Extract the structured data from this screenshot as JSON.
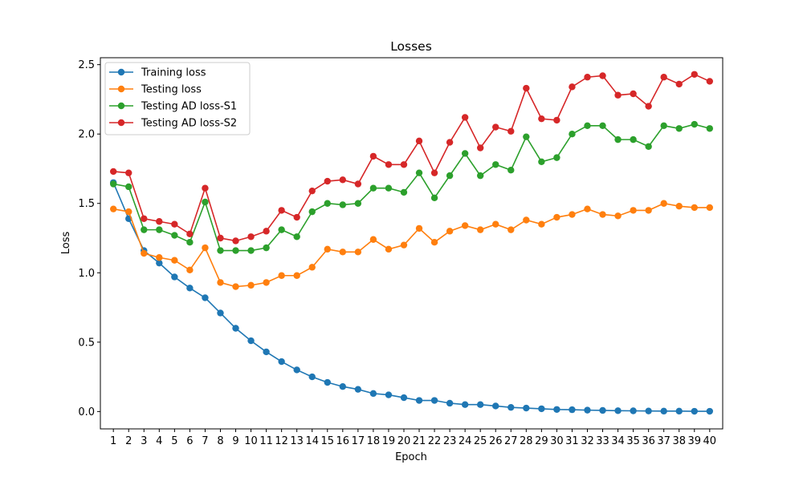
{
  "chart_data": {
    "type": "line",
    "title": "Losses",
    "xlabel": "Epoch",
    "ylabel": "Loss",
    "xlim": [
      0.15,
      40.85
    ],
    "ylim": [
      -0.125,
      2.55
    ],
    "x": [
      1,
      2,
      3,
      4,
      5,
      6,
      7,
      8,
      9,
      10,
      11,
      12,
      13,
      14,
      15,
      16,
      17,
      18,
      19,
      20,
      21,
      22,
      23,
      24,
      25,
      26,
      27,
      28,
      29,
      30,
      31,
      32,
      33,
      34,
      35,
      36,
      37,
      38,
      39,
      40
    ],
    "x_ticks": [
      "1",
      "2",
      "3",
      "4",
      "5",
      "6",
      "7",
      "8",
      "9",
      "10",
      "11",
      "12",
      "13",
      "14",
      "15",
      "16",
      "17",
      "18",
      "19",
      "20",
      "21",
      "22",
      "23",
      "24",
      "25",
      "26",
      "27",
      "28",
      "29",
      "30",
      "31",
      "32",
      "33",
      "34",
      "35",
      "36",
      "37",
      "38",
      "39",
      "40"
    ],
    "y_ticks": [
      {
        "value": 0.0,
        "label": "0.0"
      },
      {
        "value": 0.5,
        "label": "0.5"
      },
      {
        "value": 1.0,
        "label": "1.0"
      },
      {
        "value": 1.5,
        "label": "1.5"
      },
      {
        "value": 2.0,
        "label": "2.0"
      },
      {
        "value": 2.5,
        "label": "2.5"
      }
    ],
    "grid": false,
    "legend_position": "top-left",
    "series": [
      {
        "name": "Training loss",
        "color": "#1f77b4",
        "values": [
          1.65,
          1.39,
          1.16,
          1.07,
          0.97,
          0.89,
          0.82,
          0.71,
          0.6,
          0.51,
          0.43,
          0.36,
          0.3,
          0.25,
          0.21,
          0.18,
          0.16,
          0.13,
          0.12,
          0.1,
          0.08,
          0.08,
          0.06,
          0.05,
          0.05,
          0.04,
          0.03,
          0.025,
          0.02,
          0.015,
          0.013,
          0.01,
          0.008,
          0.006,
          0.005,
          0.004,
          0.003,
          0.003,
          0.002,
          0.002
        ]
      },
      {
        "name": "Testing loss",
        "color": "#ff7f0e",
        "values": [
          1.46,
          1.44,
          1.14,
          1.11,
          1.09,
          1.02,
          1.18,
          0.93,
          0.9,
          0.91,
          0.93,
          0.98,
          0.98,
          1.04,
          1.17,
          1.15,
          1.15,
          1.24,
          1.17,
          1.2,
          1.32,
          1.22,
          1.3,
          1.34,
          1.31,
          1.35,
          1.31,
          1.38,
          1.35,
          1.4,
          1.42,
          1.46,
          1.42,
          1.41,
          1.45,
          1.45,
          1.5,
          1.48,
          1.47,
          1.47
        ]
      },
      {
        "name": "Testing AD loss-S1",
        "color": "#2ca02c",
        "values": [
          1.64,
          1.62,
          1.31,
          1.31,
          1.27,
          1.22,
          1.51,
          1.16,
          1.16,
          1.16,
          1.18,
          1.31,
          1.26,
          1.44,
          1.5,
          1.49,
          1.5,
          1.61,
          1.61,
          1.58,
          1.72,
          1.54,
          1.7,
          1.86,
          1.7,
          1.78,
          1.74,
          1.98,
          1.8,
          1.83,
          2.0,
          2.06,
          2.06,
          1.96,
          1.96,
          1.91,
          2.06,
          2.04,
          2.07,
          2.04
        ]
      },
      {
        "name": "Testing AD loss-S2",
        "color": "#d62728",
        "values": [
          1.73,
          1.72,
          1.39,
          1.37,
          1.35,
          1.28,
          1.61,
          1.25,
          1.23,
          1.26,
          1.3,
          1.45,
          1.4,
          1.59,
          1.66,
          1.67,
          1.64,
          1.84,
          1.78,
          1.78,
          1.95,
          1.72,
          1.94,
          2.12,
          1.9,
          2.05,
          2.02,
          2.33,
          2.11,
          2.1,
          2.34,
          2.41,
          2.42,
          2.28,
          2.29,
          2.2,
          2.41,
          2.36,
          2.43,
          2.38
        ]
      }
    ]
  }
}
